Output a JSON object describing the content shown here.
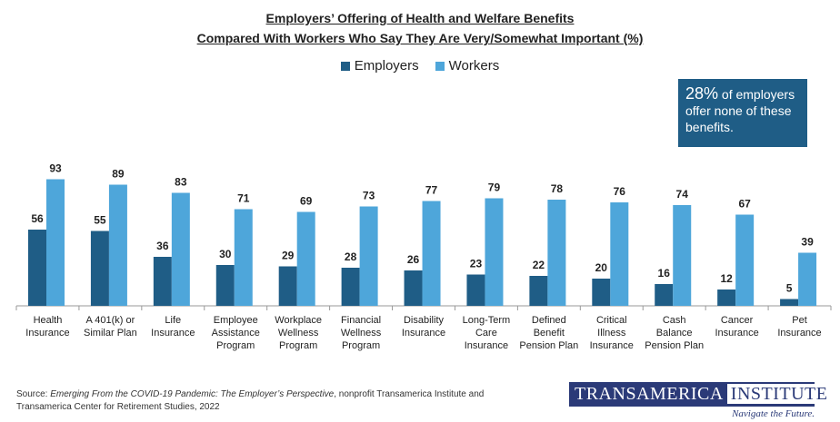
{
  "chart_data": {
    "type": "bar",
    "title": "Employers’ Offering of Health and Welfare Benefits",
    "subtitle": "Compared With Workers Who Say They Are Very/Somewhat Important (%)",
    "categories": [
      "Health Insurance",
      "A 401(k) or Similar Plan",
      "Life Insurance",
      "Employee Assistance Program",
      "Workplace Wellness Program",
      "Financial Wellness Program",
      "Disability Insurance",
      "Long-Term Care Insurance",
      "Defined Benefit Pension Plan",
      "Critical Illness Insurance",
      "Cash Balance Pension Plan",
      "Cancer Insurance",
      "Pet Insurance"
    ],
    "series": [
      {
        "name": "Employers",
        "color": "#1f5d86",
        "values": [
          56,
          55,
          36,
          30,
          29,
          28,
          26,
          23,
          22,
          20,
          16,
          12,
          5
        ]
      },
      {
        "name": "Workers",
        "color": "#4ea6da",
        "values": [
          93,
          89,
          83,
          71,
          69,
          73,
          77,
          79,
          78,
          76,
          74,
          67,
          39
        ]
      }
    ],
    "annotation": {
      "highlight": "28%",
      "text": "of employers offer none of these benefits."
    },
    "source": {
      "prefix": "Source:",
      "title": "Emerging From the COVID-19 Pandemic: The Employer’s Perspective",
      "rest": ", nonprofit Transamerica Institute and Transamerica Center for Retirement Studies, 2022"
    },
    "logo": {
      "name": "TRANSAMERICA",
      "word": "INSTITUTE",
      "tagline": "Navigate the Future."
    }
  }
}
